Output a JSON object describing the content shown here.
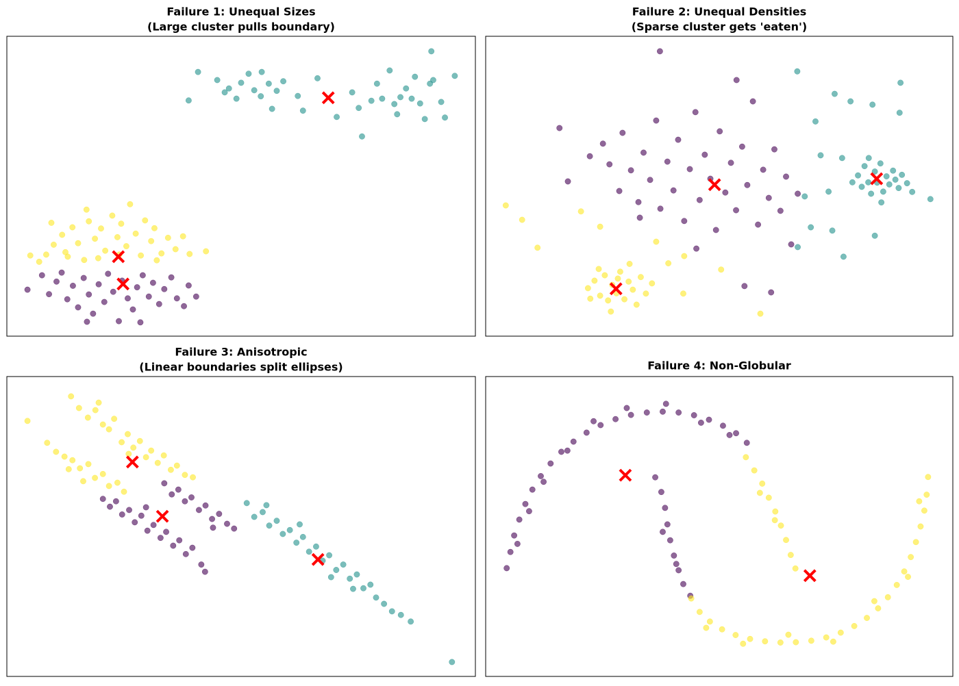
{
  "chart_data": [
    {
      "type": "scatter",
      "title": "Failure 1: Unequal Sizes",
      "subtitle": "(Large cluster pulls boundary)",
      "xlim": [
        0,
        100
      ],
      "ylim": [
        0,
        100
      ],
      "series": [
        {
          "color": "#21918c",
          "x": [
            38.8,
            40.8,
            44.9,
            46.5,
            47.4,
            49,
            50,
            51.6,
            52.8,
            54.2,
            54.4,
            55.9,
            56.6,
            57.6,
            59,
            62.1,
            63.2,
            66.3,
            70.4,
            73.7,
            75.1,
            75.8,
            79,
            80.1,
            81.7,
            83.3,
            84,
            85.2,
            86.4,
            87.1,
            88.2,
            89.2,
            90.3,
            90.6,
            92.7,
            93.5,
            95.6,
            91,
            82.7,
            77.8
          ],
          "y": [
            78.6,
            88.1,
            85.4,
            81.3,
            82.6,
            79.2,
            84.5,
            87.5,
            82,
            80,
            88.1,
            84.2,
            75.8,
            81.8,
            85,
            80.1,
            75.2,
            86,
            73.1,
            81.3,
            76.1,
            66.6,
            84.2,
            79.2,
            88.6,
            74,
            79.7,
            82.6,
            79.2,
            86.5,
            77.6,
            72.4,
            84.2,
            95,
            78.1,
            72.9,
            86.8,
            85.4,
            77.4,
            78.5
          ]
        },
        {
          "color": "#fde725",
          "x": [
            6.9,
            8.4,
            10,
            11.8,
            12.5,
            14,
            15.2,
            16.5,
            17.5,
            18.8,
            20.1,
            21,
            22.5,
            23.6,
            24.4,
            25.5,
            26.3,
            27.5,
            28.6,
            29.5,
            30.8,
            31.5,
            33,
            34.4,
            36,
            37.6,
            39,
            42.5,
            13,
            19.5,
            24,
            32,
            5,
            9.5,
            17
          ],
          "y": [
            24.8,
            27.2,
            30.5,
            33.8,
            28,
            36.3,
            31,
            25.4,
            38.3,
            32.5,
            35.9,
            28.5,
            40.2,
            33,
            37.5,
            30,
            44,
            34.2,
            26.9,
            38.6,
            31.7,
            36,
            27.6,
            32.8,
            29,
            33.3,
            27.4,
            28.3,
            26.5,
            26,
            27.2,
            25.3,
            26.9,
            37.8,
            42.2
          ]
        },
        {
          "color": "#440154",
          "x": [
            4.4,
            7.5,
            9,
            10.6,
            11.7,
            12.9,
            14.1,
            15.2,
            16.4,
            17.5,
            18.4,
            19.6,
            20.8,
            21.6,
            22.7,
            23.9,
            24.6,
            25.8,
            26.9,
            27.8,
            29,
            30.3,
            31.2,
            32.5,
            33.6,
            35.1,
            36.3,
            37.8,
            38.8,
            40.4,
            28.5,
            17.1
          ],
          "y": [
            15.5,
            20.3,
            14,
            18.2,
            21.2,
            12.3,
            16.8,
            9.6,
            19.4,
            13.9,
            7.5,
            17.3,
            11.4,
            20.8,
            14.8,
            5,
            18.5,
            12.6,
            8.9,
            16.3,
            20.3,
            13.2,
            17.8,
            10.7,
            15.7,
            19.6,
            12.6,
            10,
            16.9,
            13.2,
            4.6,
            4.8
          ]
        },
        {
          "color": "#ff0000",
          "marker": "x",
          "x": [
            68.6,
            23.8,
            24.8
          ],
          "y": [
            79.5,
            26.5,
            17.4
          ]
        }
      ]
    },
    {
      "type": "scatter",
      "title": "Failure 2: Unequal Densities",
      "subtitle": "(Sparse cluster gets 'eaten')",
      "xlim": [
        0,
        100
      ],
      "ylim": [
        0,
        100
      ],
      "series": [
        {
          "color": "#440154",
          "x": [
            15.8,
            17.6,
            22.3,
            25.1,
            26.5,
            28.6,
            29.3,
            31.1,
            32.7,
            33.8,
            35.2,
            36.5,
            37.4,
            38.9,
            40.2,
            41.2,
            42.5,
            43.7,
            44.9,
            45.8,
            46.9,
            48.1,
            49.3,
            50.1,
            51.3,
            52.5,
            53.6,
            54.9,
            56,
            57.2,
            58.3,
            59.4,
            60.6,
            61.8,
            63.1,
            64.3,
            65.4,
            66.8,
            55.4,
            61.1,
            37.3,
            53.7,
            45.1,
            33
          ],
          "y": [
            69.4,
            51.6,
            60,
            64.2,
            57.3,
            48.4,
            67.8,
            55.3,
            44.7,
            61.2,
            52.1,
            71.9,
            42.5,
            58.2,
            48.6,
            65.5,
            38.4,
            55.7,
            74.7,
            45.4,
            60.5,
            52.5,
            35.4,
            68.3,
            47.9,
            57.8,
            42,
            63.2,
            50.4,
            78.3,
            37.2,
            55.5,
            46.1,
            62.3,
            41.8,
            53.2,
            30.6,
            47.5,
            16.7,
            14.6,
            95,
            85.4,
            29.2,
            39.5
          ]
        },
        {
          "color": "#fde725",
          "x": [
            21.9,
            23.3,
            24.5,
            25.5,
            26.2,
            27.1,
            28,
            28.8,
            29.7,
            30.6,
            31.5,
            32.3,
            33.2,
            34.3,
            35.6,
            26.8,
            24.2,
            30.8,
            22.4,
            28.3,
            4.3,
            7.8,
            11.1,
            20.4,
            24.5,
            36.5,
            39.1,
            42.5,
            50.4,
            58.8,
            42.3
          ],
          "y": [
            16,
            18.5,
            13.5,
            20.3,
            11.9,
            17.1,
            14.3,
            21.5,
            12.3,
            18.2,
            15.5,
            10.5,
            19.7,
            14.2,
            17.6,
            8.2,
            22.4,
            24.1,
            12.5,
            19.2,
            43.6,
            38.8,
            29.5,
            41.6,
            36.5,
            31.5,
            24.3,
            26.7,
            22.2,
            7.5,
            14.2
          ]
        },
        {
          "color": "#21918c",
          "x": [
            79.7,
            80.5,
            81.1,
            81.9,
            82.5,
            83.3,
            83.8,
            84.5,
            85.1,
            85.8,
            86.4,
            87.2,
            87.7,
            88.4,
            89.1,
            90.2,
            82,
            84.7,
            78.5,
            91.3,
            66.7,
            70.6,
            71.7,
            68.3,
            73.4,
            76.3,
            74.2,
            76.6,
            69.6,
            66.8,
            78.1,
            88.6,
            95.2,
            83.3,
            74.7,
            82.8,
            88.8
          ],
          "y": [
            53.6,
            49.8,
            56.7,
            51.3,
            47.5,
            54.9,
            51.2,
            57.6,
            48.2,
            53.3,
            50.6,
            55.2,
            52.2,
            49.4,
            53.8,
            51,
            59.4,
            44.6,
            51.3,
            48.1,
            88.3,
            71.6,
            60.3,
            46.6,
            48.2,
            59.4,
            35.2,
            26.5,
            36.3,
            29.7,
            78.3,
            74.5,
            45.7,
            33.5,
            80.8,
            77.2,
            84.5
          ]
        },
        {
          "color": "#ff0000",
          "marker": "x",
          "x": [
            49,
            27.9,
            83.7
          ],
          "y": [
            50.5,
            15.8,
            52.5
          ]
        }
      ]
    },
    {
      "type": "scatter",
      "title": "Failure 3: Anisotropic",
      "subtitle": "(Linear boundaries split ellipses)",
      "xlim": [
        0,
        100
      ],
      "ylim": [
        0,
        100
      ],
      "series": [
        {
          "color": "#fde725",
          "x": [
            4.4,
            13.7,
            15.4,
            17.3,
            18.9,
            20.5,
            21.8,
            22.9,
            24.5,
            25.8,
            27,
            28.4,
            29.7,
            30.8,
            32.2,
            33.5,
            35,
            36.3,
            38,
            39.7,
            19.6,
            26,
            8.6,
            10.5,
            12.3,
            14,
            15.6,
            17.4,
            18.8,
            20.5,
            21.8,
            23.6,
            25,
            16.3,
            13.2
          ],
          "y": [
            85.2,
            93.4,
            89.5,
            86.3,
            88.8,
            84,
            82.4,
            85.9,
            78.1,
            80.8,
            76.3,
            78.5,
            73.1,
            75.3,
            71.2,
            73.7,
            68.9,
            70.3,
            67.2,
            66.4,
            91.3,
            74.2,
            77.9,
            74.9,
            73.3,
            72.1,
            69.4,
            70.8,
            66.2,
            67.5,
            63.5,
            64.6,
            61.6,
            65.1,
            69.1
          ]
        },
        {
          "color": "#440154",
          "x": [
            20.5,
            22,
            23.3,
            24.6,
            26.1,
            27.3,
            28.7,
            30,
            31.3,
            32.8,
            34,
            35.5,
            36.8,
            38.2,
            39.6,
            41.5,
            42.3,
            33.6,
            35.2,
            36.6,
            38,
            39.4,
            41,
            42.4,
            43.8,
            45.3,
            47,
            48.5,
            44,
            29.7
          ],
          "y": [
            59.2,
            56.6,
            58.4,
            54,
            55.5,
            51.4,
            53.6,
            48.6,
            50.5,
            46.2,
            48.2,
            43.6,
            45.4,
            40.8,
            42.9,
            37.3,
            34.9,
            64.4,
            60.7,
            62.3,
            58.4,
            59.7,
            55.5,
            57,
            52.5,
            54.2,
            50.9,
            49.3,
            49.6,
            56.4
          ]
        },
        {
          "color": "#21918c",
          "x": [
            51.2,
            52.8,
            54.6,
            56,
            57.6,
            58.9,
            60.4,
            61.8,
            63.2,
            64.5,
            66,
            67.4,
            68.8,
            70.3,
            71.8,
            73.2,
            74.7,
            76.1,
            77.6,
            78.8,
            80.5,
            82.2,
            84.1,
            86.2,
            95,
            55.4,
            62.5,
            69.2,
            73.9
          ],
          "y": [
            57.8,
            53.2,
            54.8,
            50.3,
            51.9,
            47.5,
            48.8,
            44.6,
            46.5,
            41.6,
            43.3,
            38.6,
            40.4,
            35.5,
            37.3,
            32.6,
            34,
            29.4,
            30.6,
            26.3,
            24.2,
            21.7,
            20.5,
            18.3,
            4.8,
            57.1,
            50.7,
            33.1,
            29.2
          ]
        },
        {
          "color": "#ff0000",
          "marker": "x",
          "x": [
            26.8,
            33.2,
            66.4
          ],
          "y": [
            71.5,
            53.4,
            39
          ]
        }
      ]
    },
    {
      "type": "scatter",
      "title": "Failure 4: Non-Globular",
      "xlim": [
        0,
        100
      ],
      "ylim": [
        0,
        100
      ],
      "series": [
        {
          "color": "#440154",
          "x": [
            4.5,
            5.3,
            6.1,
            7.2,
            8.5,
            10,
            11.8,
            13.9,
            16.2,
            18.8,
            21.6,
            24.6,
            27.8,
            31.1,
            34.5,
            37.9,
            41.3,
            44.6,
            47.8,
            50.8,
            53.6,
            55.9,
            6.8,
            9.3,
            12.4,
            17.5,
            23.1,
            30.2,
            38.6,
            46.1,
            52.2,
            36.3,
            37.6,
            38.4,
            38.9,
            39.5,
            40.3,
            41.3,
            42.3,
            43.8,
            37.9,
            40.8
          ],
          "y": [
            36.1,
            41.5,
            47,
            52.3,
            57.5,
            62.3,
            66.8,
            71,
            74.9,
            78.3,
            81.3,
            83.8,
            85.8,
            87.2,
            88,
            88.3,
            88,
            87.1,
            85.6,
            83.6,
            81.1,
            77.9,
            44.2,
            55.1,
            64.9,
            75.3,
            85.1,
            89.5,
            90.9,
            84.6,
            80.5,
            66.4,
            61.5,
            56.2,
            50.7,
            45.4,
            40.3,
            35.4,
            30.8,
            26.9,
            48.2,
            37.5
          ]
        },
        {
          "color": "#fde725",
          "x": [
            55.7,
            57.5,
            59.2,
            60.6,
            62,
            63.2,
            64.3,
            65.3,
            66.3,
            44,
            45.8,
            48,
            50.6,
            53.5,
            56.6,
            59.8,
            63.1,
            66.4,
            69.7,
            72.9,
            76,
            78.9,
            81.6,
            84,
            86.1,
            88,
            89.6,
            91,
            92.1,
            93.1,
            93.9,
            94.4,
            94.7,
            58.7,
            61.9,
            47.2,
            55.1,
            64.8,
            74.4,
            83.2,
            90.4,
            92.8
          ],
          "y": [
            73.1,
            68.7,
            64.3,
            59.6,
            55,
            50.3,
            45.5,
            40.5,
            36,
            26,
            21.5,
            18.3,
            15.7,
            13.8,
            12.5,
            11.7,
            11.3,
            11.4,
            11.9,
            13,
            14.6,
            16.8,
            19.5,
            22.7,
            26.4,
            30.5,
            35,
            39.8,
            44.8,
            50,
            55.3,
            60.6,
            66.5,
            61.2,
            52.1,
            16.2,
            10.9,
            13.9,
            11.6,
            25.1,
            33.2,
            58.4
          ]
        },
        {
          "color": "#ff0000",
          "marker": "x",
          "x": [
            29.9,
            69.4
          ],
          "y": [
            67.1,
            33.6
          ]
        }
      ]
    }
  ]
}
